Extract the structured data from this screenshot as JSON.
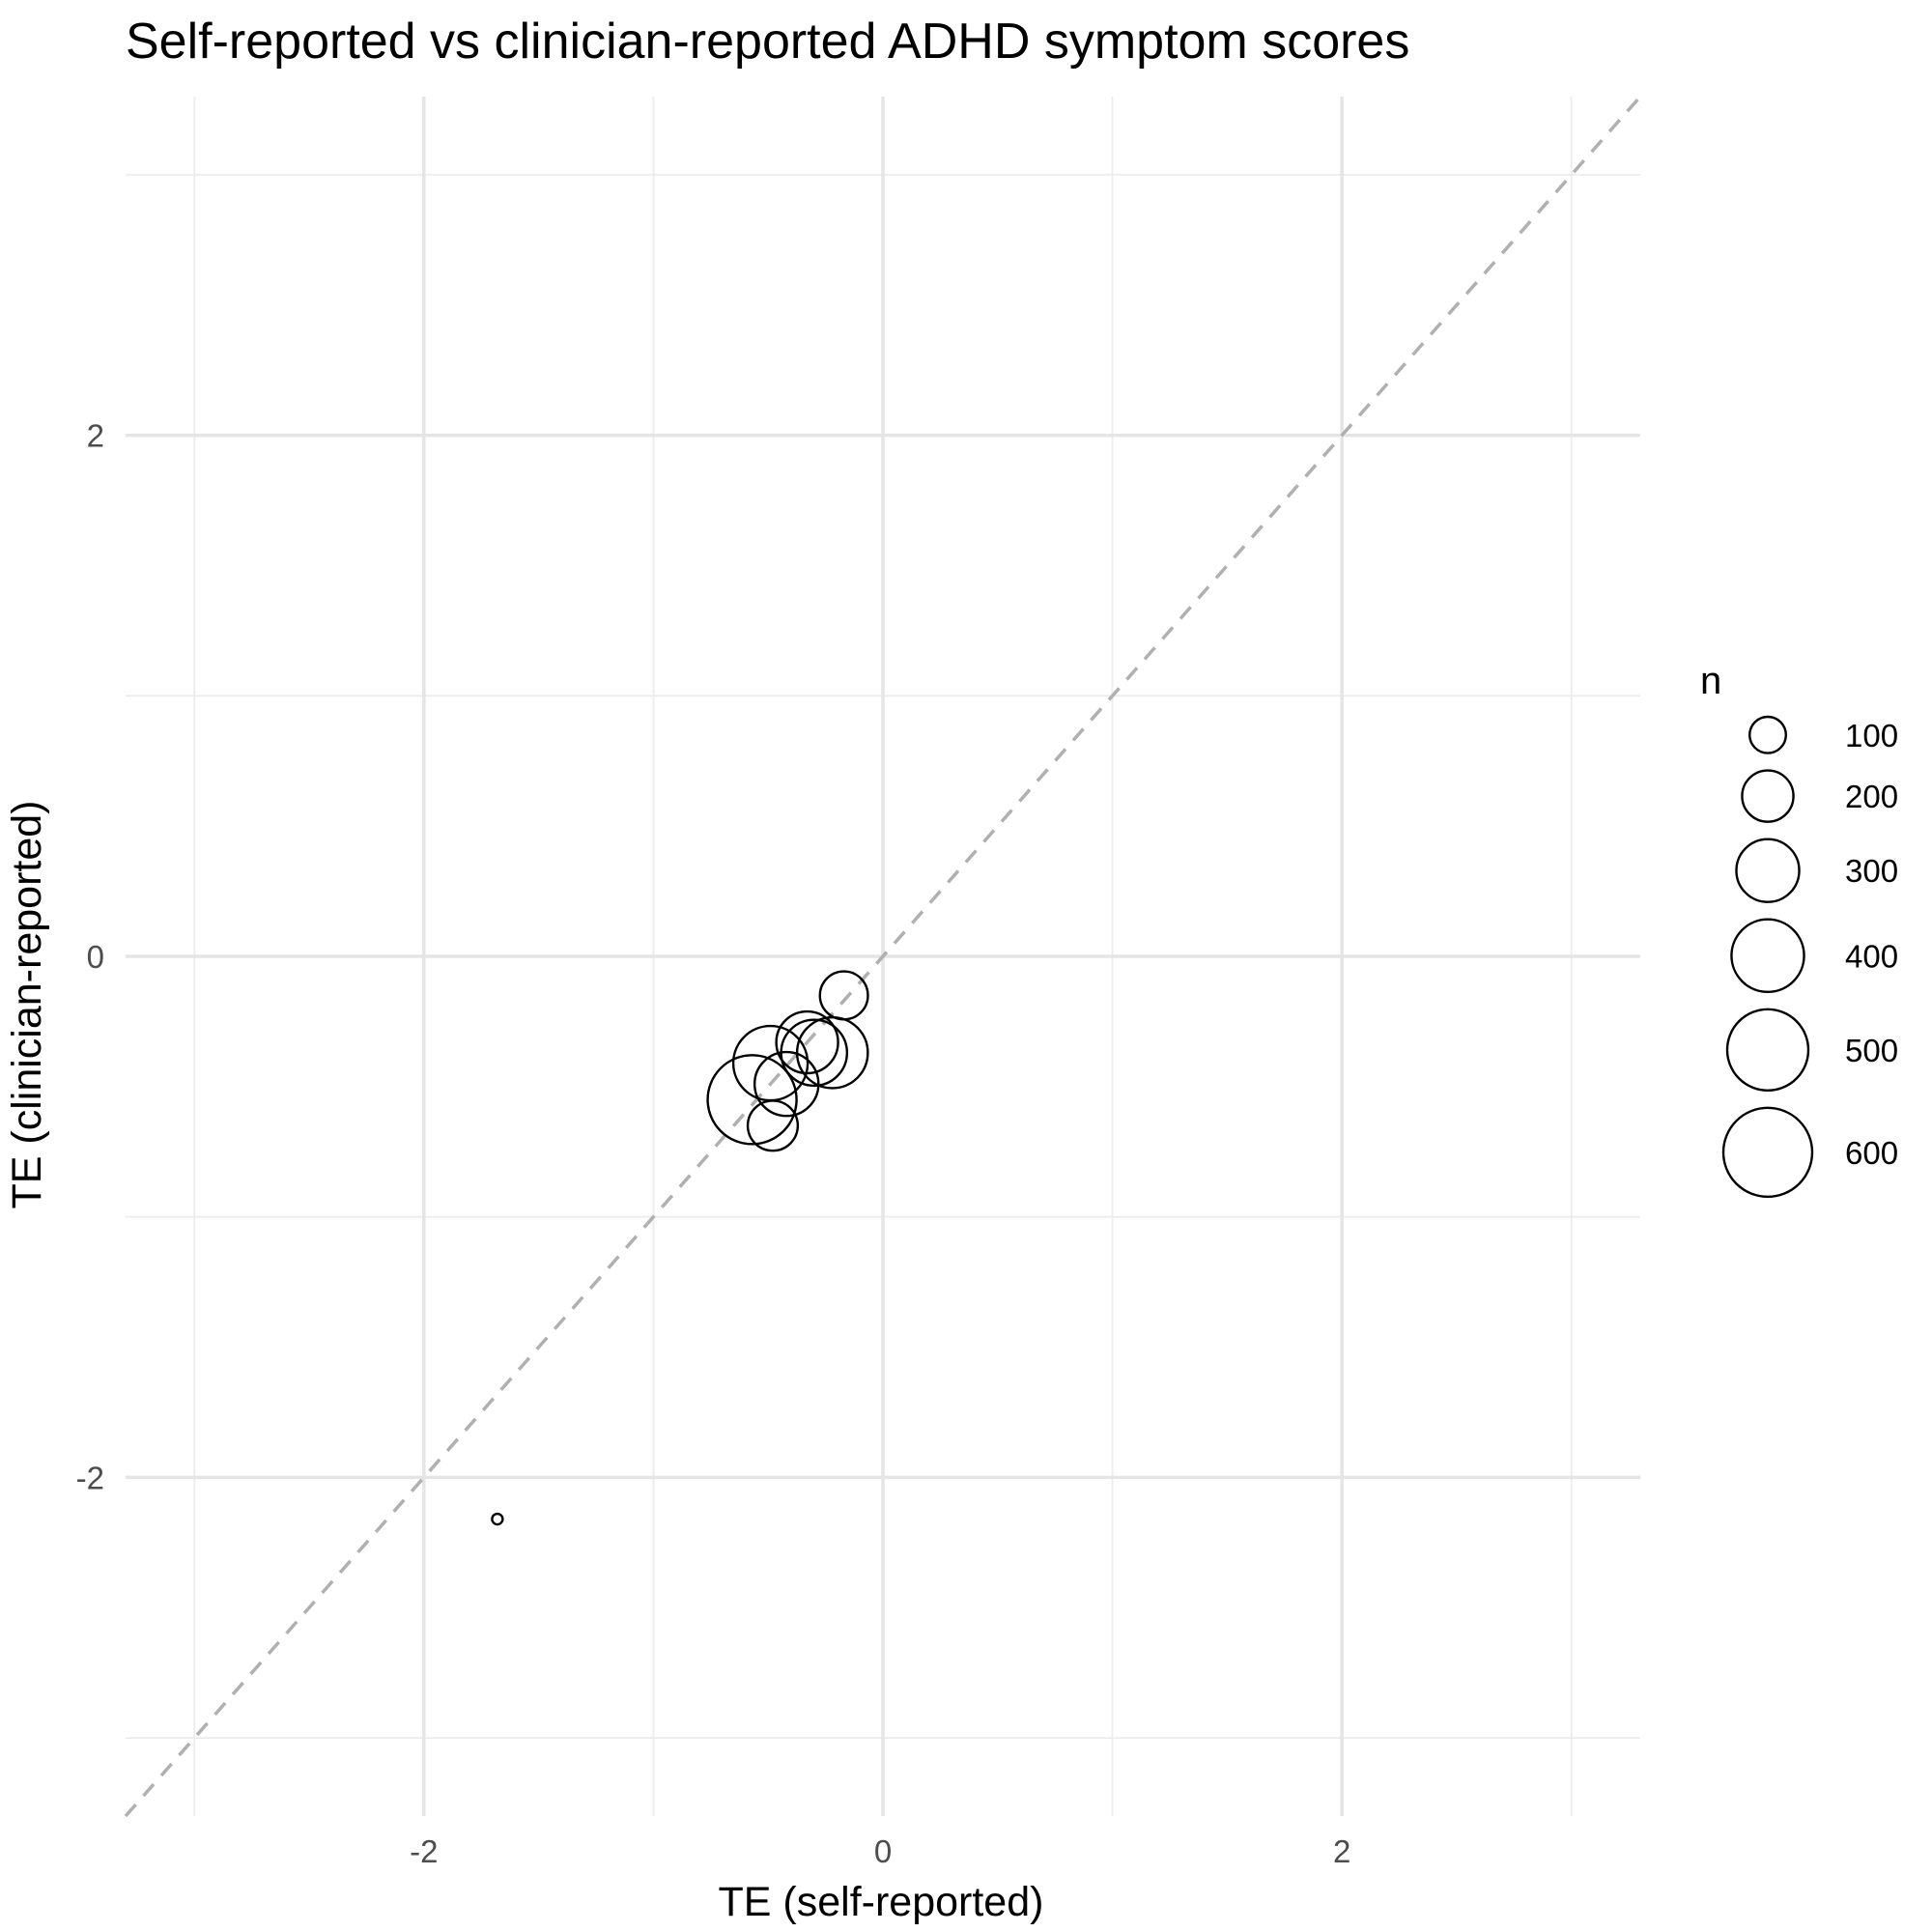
{
  "chart_data": {
    "type": "scatter",
    "title": "Self-reported vs clinician-reported ADHD symptom scores",
    "xlabel": "TE (self-reported)",
    "ylabel": "TE (clinician-reported)",
    "xlim": [
      -3.3,
      3.3
    ],
    "ylim": [
      -3.3,
      3.3
    ],
    "x_ticks": [
      -2,
      0,
      2
    ],
    "y_ticks": [
      -2,
      0,
      2
    ],
    "x_tick_labels": [
      "-2",
      "0",
      "2"
    ],
    "y_tick_labels": [
      "-2",
      "0",
      "2"
    ],
    "grid": true,
    "reference_line": "y = x",
    "size_legend": {
      "title": "n",
      "position": "right",
      "breaks": [
        100,
        200,
        300,
        400,
        500,
        600
      ],
      "labels": [
        "100",
        "200",
        "300",
        "400",
        "500",
        "600"
      ]
    },
    "points": [
      {
        "x": -1.68,
        "y": -2.16,
        "n": 8
      },
      {
        "x": -0.57,
        "y": -0.55,
        "n": 600
      },
      {
        "x": -0.49,
        "y": -0.41,
        "n": 420
      },
      {
        "x": -0.48,
        "y": -0.65,
        "n": 190
      },
      {
        "x": -0.42,
        "y": -0.49,
        "n": 310
      },
      {
        "x": -0.33,
        "y": -0.33,
        "n": 290
      },
      {
        "x": -0.3,
        "y": -0.37,
        "n": 330
      },
      {
        "x": -0.22,
        "y": -0.37,
        "n": 380
      },
      {
        "x": -0.17,
        "y": -0.15,
        "n": 175
      }
    ]
  }
}
